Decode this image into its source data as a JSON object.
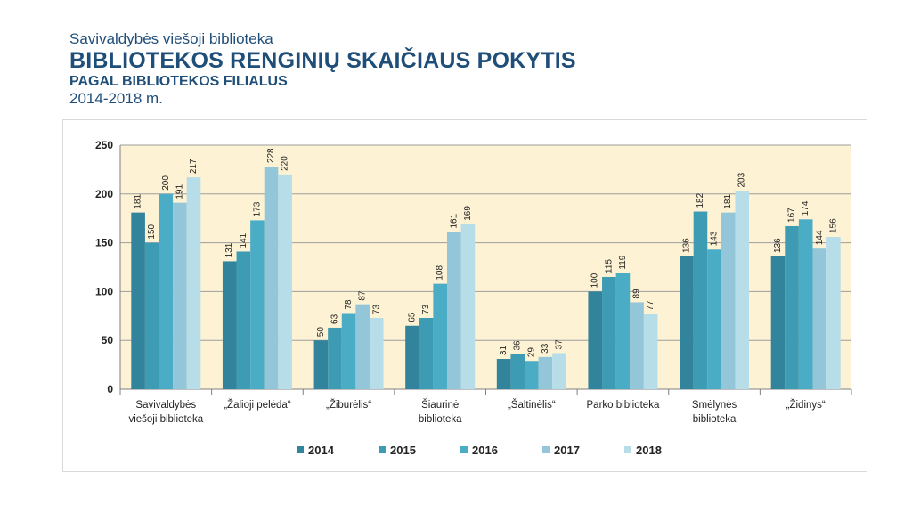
{
  "header": {
    "subtitle": "Savivaldybės viešoji biblioteka",
    "title": "BIBLIOTEKOS RENGINIŲ SKAIČIAUS POKYTIS",
    "title2": "PAGAL BIBLIOTEKOS FILIALUS",
    "years": "2014-2018 m."
  },
  "chart_data": {
    "type": "bar",
    "title": "",
    "xlabel": "",
    "ylabel": "",
    "ylim": [
      0,
      250
    ],
    "yticks": [
      0,
      50,
      100,
      150,
      200,
      250
    ],
    "grid": true,
    "legend_position": "bottom",
    "categories": [
      [
        "Savivaldybės",
        "viešoji biblioteka"
      ],
      [
        "„Žalioji pelėda“"
      ],
      [
        "„Žiburėlis“"
      ],
      [
        "Šiaurinė",
        "biblioteka"
      ],
      [
        "„Šaltinėlis“"
      ],
      [
        "Parko biblioteka"
      ],
      [
        "Smėlynės",
        "biblioteka"
      ],
      [
        "„Židinys“"
      ]
    ],
    "series": [
      {
        "name": "2014",
        "color": "#31849b",
        "values": [
          181,
          131,
          50,
          65,
          31,
          100,
          136,
          136
        ]
      },
      {
        "name": "2015",
        "color": "#3e9bb4",
        "values": [
          150,
          141,
          63,
          73,
          36,
          115,
          182,
          167
        ]
      },
      {
        "name": "2016",
        "color": "#4bacc6",
        "values": [
          200,
          173,
          78,
          108,
          29,
          119,
          143,
          174
        ]
      },
      {
        "name": "2017",
        "color": "#93c6d8",
        "values": [
          191,
          228,
          87,
          161,
          33,
          89,
          181,
          144
        ]
      },
      {
        "name": "2018",
        "color": "#b7dde8",
        "values": [
          217,
          220,
          73,
          169,
          37,
          77,
          203,
          156
        ]
      }
    ],
    "plot_background": "#fdf3d4"
  }
}
